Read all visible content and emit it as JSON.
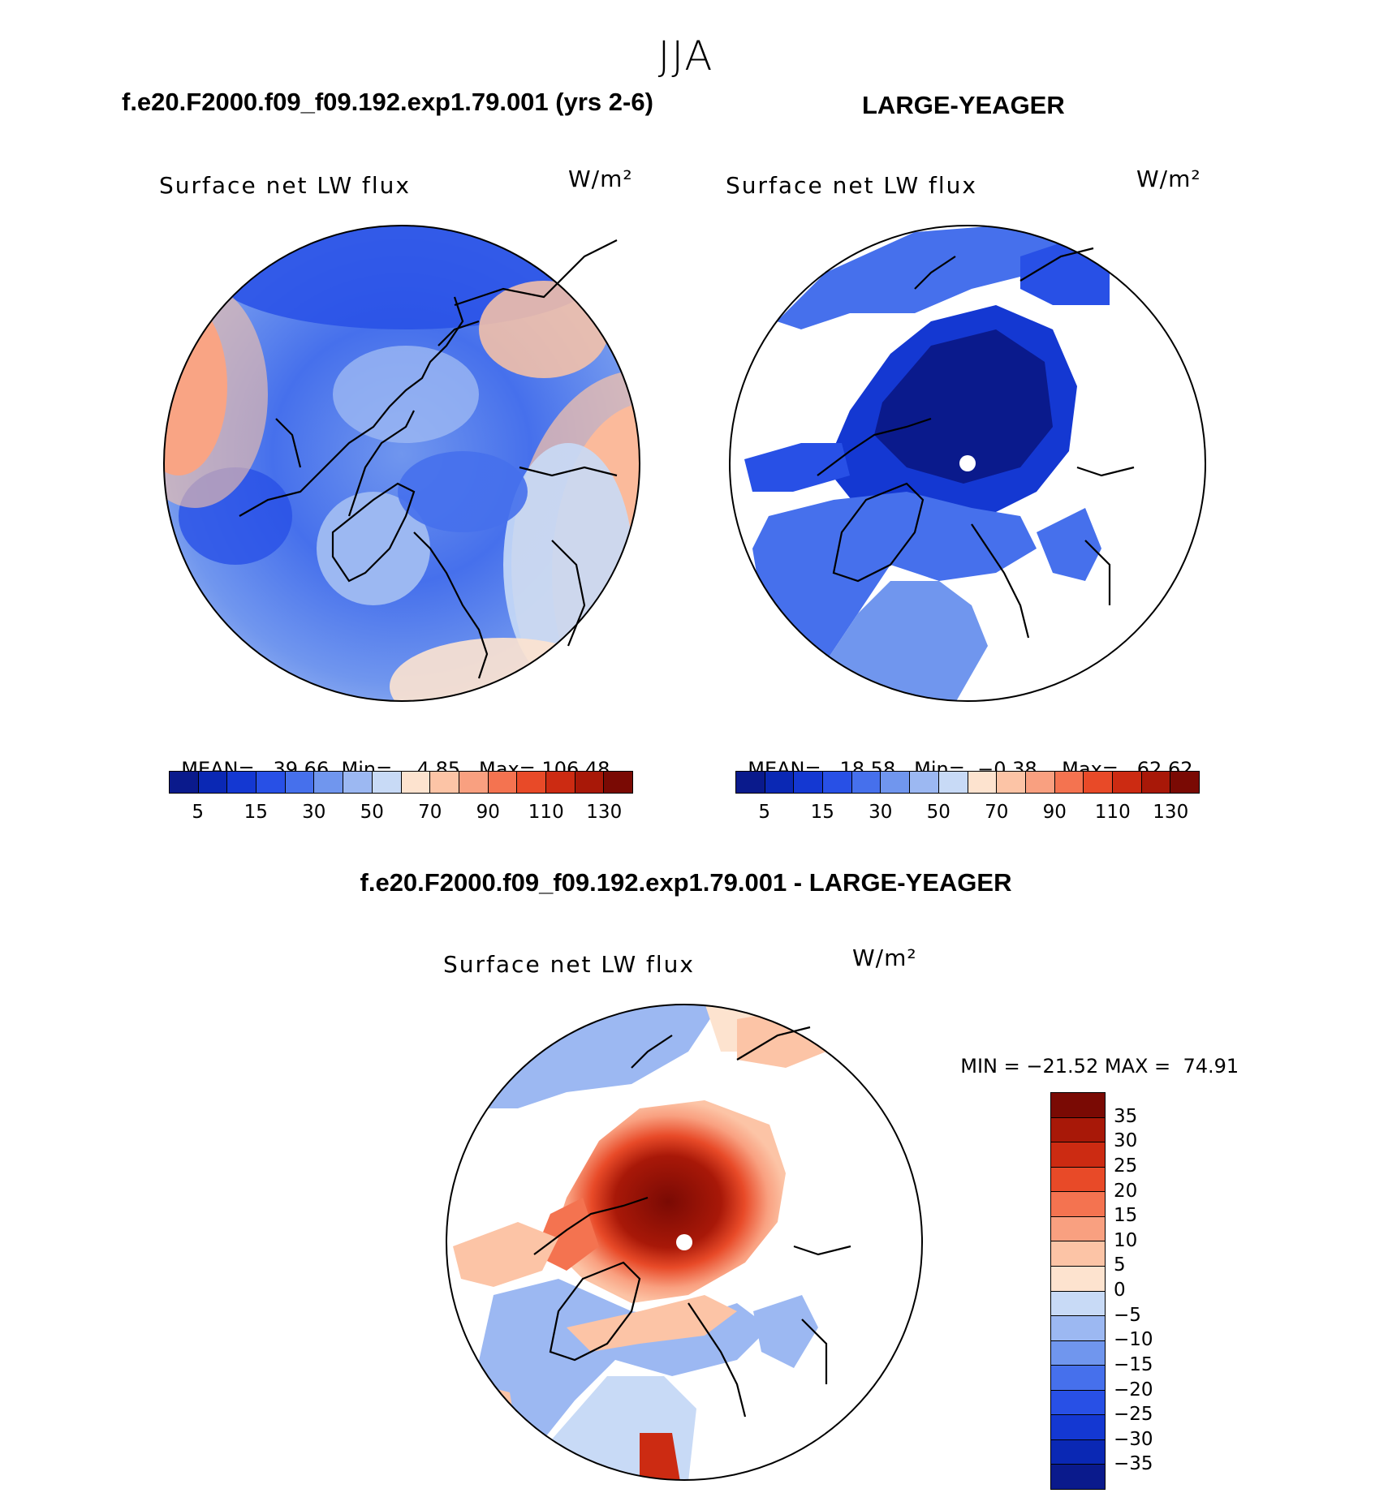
{
  "season": "JJA",
  "panels": [
    {
      "case_title": "f.e20.F2000.f09_f09.192.exp1.79.001 (yrs 2-6)",
      "variable": "Surface net LW flux",
      "units": "W/m²",
      "stats": {
        "mean_label": "MEAN=",
        "mean": "39.66",
        "min_label": "Min=",
        "min": "4.85",
        "max_label": "Max=",
        "max": "106.48"
      },
      "colorbar": {
        "colors": [
          "#0a1a8c",
          "#0a28b4",
          "#1438d2",
          "#2850e6",
          "#4670ec",
          "#7096ee",
          "#9cb8f2",
          "#c8daf6",
          "#fde3cf",
          "#fcc4a6",
          "#f9a080",
          "#f47350",
          "#e84a28",
          "#cc2b12",
          "#a81808",
          "#7a0a04"
        ],
        "tick_labels": [
          "5",
          "15",
          "30",
          "50",
          "70",
          "90",
          "110",
          "130"
        ]
      }
    },
    {
      "case_title": "LARGE-YEAGER",
      "variable": "Surface net LW flux",
      "units": "W/m²",
      "stats": {
        "mean_label": "MEAN=",
        "mean": "18.58",
        "min_label": "Min=",
        "min": "−0.38",
        "max_label": "Max=",
        "max": "62.62"
      },
      "colorbar": {
        "colors": [
          "#0a1a8c",
          "#0a28b4",
          "#1438d2",
          "#2850e6",
          "#4670ec",
          "#7096ee",
          "#9cb8f2",
          "#c8daf6",
          "#fde3cf",
          "#fcc4a6",
          "#f9a080",
          "#f47350",
          "#e84a28",
          "#cc2b12",
          "#a81808",
          "#7a0a04"
        ],
        "tick_labels": [
          "5",
          "15",
          "30",
          "50",
          "70",
          "90",
          "110",
          "130"
        ]
      }
    }
  ],
  "difference": {
    "title": "f.e20.F2000.f09_f09.192.exp1.79.001 - LARGE-YEAGER",
    "variable": "Surface net LW flux",
    "units": "W/m²",
    "stats": {
      "min_label": "MIN =",
      "min": "−21.52",
      "max_label": "MAX =",
      "max": "74.91"
    },
    "colorbar": {
      "colors": [
        "#7a0a04",
        "#a81808",
        "#cc2b12",
        "#e84a28",
        "#f47350",
        "#f9a080",
        "#fcc4a6",
        "#fde3cf",
        "#c8daf6",
        "#9cb8f2",
        "#7096ee",
        "#4670ec",
        "#2850e6",
        "#1438d2",
        "#0a28b4",
        "#0a1a8c"
      ],
      "tick_labels": [
        "35",
        "30",
        "25",
        "20",
        "15",
        "10",
        "5",
        "0",
        "−5",
        "−10",
        "−15",
        "−20",
        "−25",
        "−30",
        "−35"
      ]
    }
  },
  "colors": {
    "land_blank": "#ffffff",
    "coast_line": "#000000",
    "pole_marker": "#ffffff"
  }
}
